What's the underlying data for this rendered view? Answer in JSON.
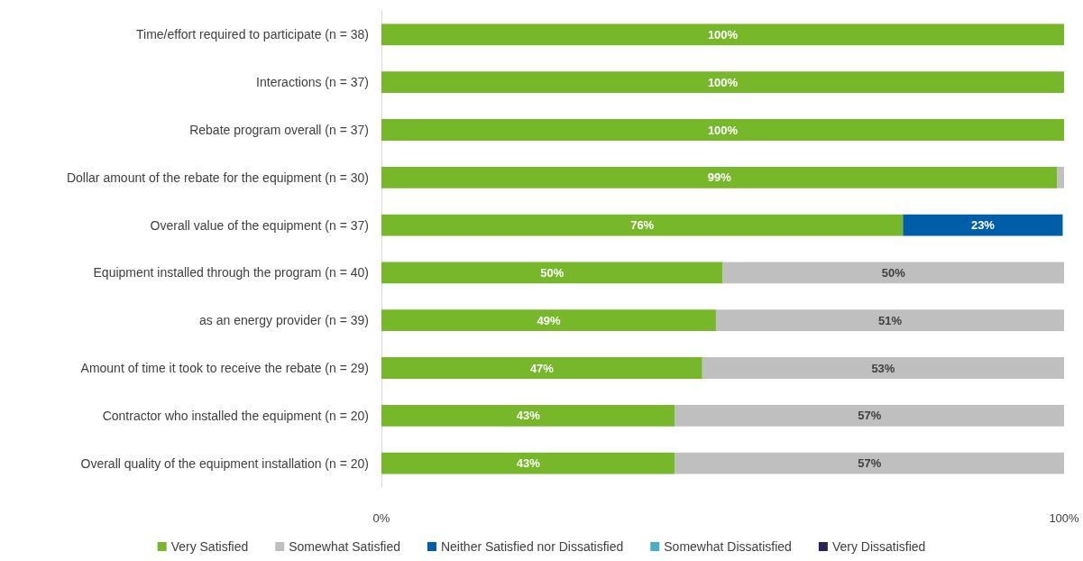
{
  "chart_data": {
    "type": "bar",
    "orientation": "horizontal",
    "stacked": true,
    "legend": "bottom",
    "grid": false,
    "categories": [
      "Time/effort required to participate (n = 38)",
      "Interactions (n = 37)",
      "Rebate program overall (n = 37)",
      "Dollar amount of the rebate for the equipment (n = 30)",
      "Overall value of the equipment (n = 37)",
      "Equipment installed through the program (n = 40)",
      "as an energy provider (n = 39)",
      "Amount of time it took to receive the rebate (n = 29)",
      "Contractor who installed the equipment (n = 20)",
      "Overall quality of the equipment installation (n = 20)"
    ],
    "xlim": [
      0,
      100
    ],
    "xticks": [
      {
        "value": 0,
        "label": "0%"
      },
      {
        "value": 100,
        "label": "100%"
      }
    ],
    "series": [
      {
        "name": "Very Satisfied",
        "color": "#76b82a",
        "values": [
          100,
          100,
          100,
          99,
          76.4,
          50,
          49,
          47,
          43,
          43
        ],
        "value_labels": [
          "100%",
          "100%",
          "100%",
          "99%",
          "76%",
          "50%",
          "49%",
          "47%",
          "43%",
          "43%"
        ]
      },
      {
        "name": "Somewhat Satisfied",
        "color": "#bfbfbf",
        "values": [
          null,
          null,
          null,
          1,
          null,
          50,
          51,
          53,
          57,
          57
        ],
        "value_labels": [
          null,
          null,
          null,
          null,
          null,
          "50%",
          "51%",
          "53%",
          "57%",
          "57%"
        ]
      },
      {
        "name": "Neither Satisfied nor Dissatisfied",
        "color": "#005ea8",
        "values": [
          null,
          null,
          null,
          null,
          23.4,
          null,
          null,
          null,
          null,
          null
        ],
        "value_labels": [
          null,
          null,
          null,
          null,
          "23%",
          null,
          null,
          null,
          null,
          null
        ]
      },
      {
        "name": "Somewhat Dissatisfied",
        "color": "#4bacc6",
        "values": [
          null,
          null,
          null,
          null,
          null,
          null,
          null,
          null,
          null,
          null
        ]
      },
      {
        "name": "Very Dissatisfied",
        "color": "#2e2157",
        "values": [
          null,
          null,
          null,
          null,
          null,
          null,
          null,
          null,
          null,
          null
        ]
      }
    ]
  }
}
